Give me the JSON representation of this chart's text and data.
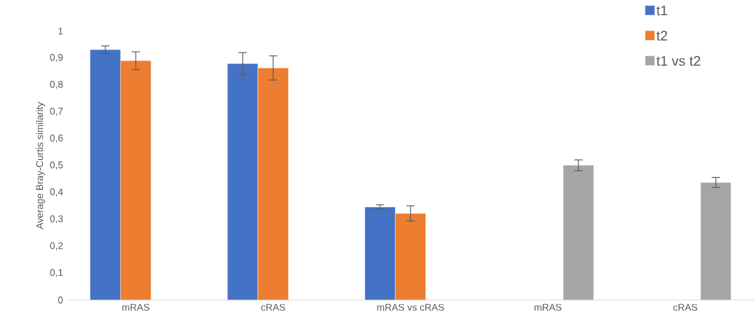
{
  "chart_data": {
    "type": "bar",
    "ylabel": "Average Bray-Curtis similarity",
    "categories": [
      "mRAS",
      "cRAS",
      "mRAS vs cRAS",
      "mRAS",
      "cRAS"
    ],
    "series": [
      {
        "name": "t1",
        "color": "#4472c4",
        "values": [
          0.931,
          0.879,
          0.346,
          null,
          null
        ],
        "errors": [
          0.014,
          0.041,
          0.008,
          null,
          null
        ]
      },
      {
        "name": "t2",
        "color": "#ed7d31",
        "values": [
          0.89,
          0.863,
          0.322,
          null,
          null
        ],
        "errors": [
          0.033,
          0.045,
          0.028,
          null,
          null
        ]
      },
      {
        "name": "t1 vs t2",
        "color": "#a5a5a5",
        "values": [
          null,
          null,
          null,
          0.501,
          0.437
        ],
        "errors": [
          null,
          null,
          null,
          0.02,
          0.019
        ]
      }
    ],
    "ylim": [
      0,
      1
    ],
    "yticks": [
      0,
      {
        "value": 0.1,
        "label": "0,1"
      },
      {
        "value": 0.2,
        "label": "0,2"
      },
      {
        "value": 0.3,
        "label": "0,3"
      },
      {
        "value": 0.4,
        "label": "0,4"
      },
      {
        "value": 0.5,
        "label": "0,5"
      },
      {
        "value": 0.6,
        "label": "0,6"
      },
      {
        "value": 0.7,
        "label": "0,7"
      },
      {
        "value": 0.8,
        "label": "0,8"
      },
      {
        "value": 0.9,
        "label": "0,9"
      },
      1
    ],
    "grid": false,
    "legend": "top right"
  }
}
